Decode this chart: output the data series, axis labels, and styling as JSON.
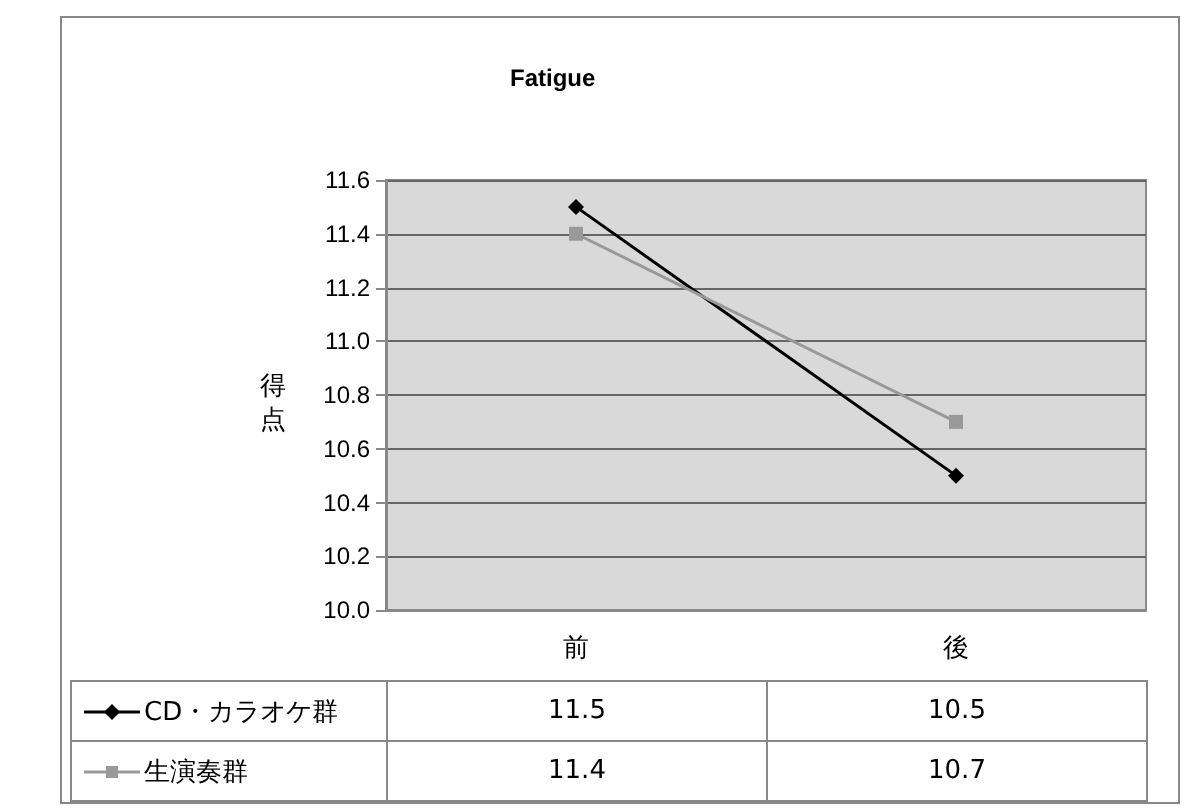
{
  "chart_data": {
    "type": "line",
    "title": "Fatigue",
    "ylabel": "得点",
    "categories": [
      "前",
      "後"
    ],
    "series": [
      {
        "name": "CD・カラオケ群",
        "color": "#000000",
        "marker": "diamond",
        "values": [
          11.5,
          10.5
        ]
      },
      {
        "name": "生演奏群",
        "color": "#999999",
        "marker": "square",
        "values": [
          11.4,
          10.7
        ]
      }
    ],
    "ylim": [
      10.0,
      11.6
    ],
    "yticks": [
      {
        "value": 10.0,
        "label": "10.0"
      },
      {
        "value": 10.2,
        "label": "10.2"
      },
      {
        "value": 10.4,
        "label": "10.4"
      },
      {
        "value": 10.6,
        "label": "10.6"
      },
      {
        "value": 10.8,
        "label": "10.8"
      },
      {
        "value": 11.0,
        "label": "11.0"
      },
      {
        "value": 11.2,
        "label": "11.2"
      },
      {
        "value": 11.4,
        "label": "11.4"
      },
      {
        "value": 11.6,
        "label": "11.6"
      }
    ],
    "grid": "y",
    "legend": "bottom",
    "data_labels": true
  }
}
